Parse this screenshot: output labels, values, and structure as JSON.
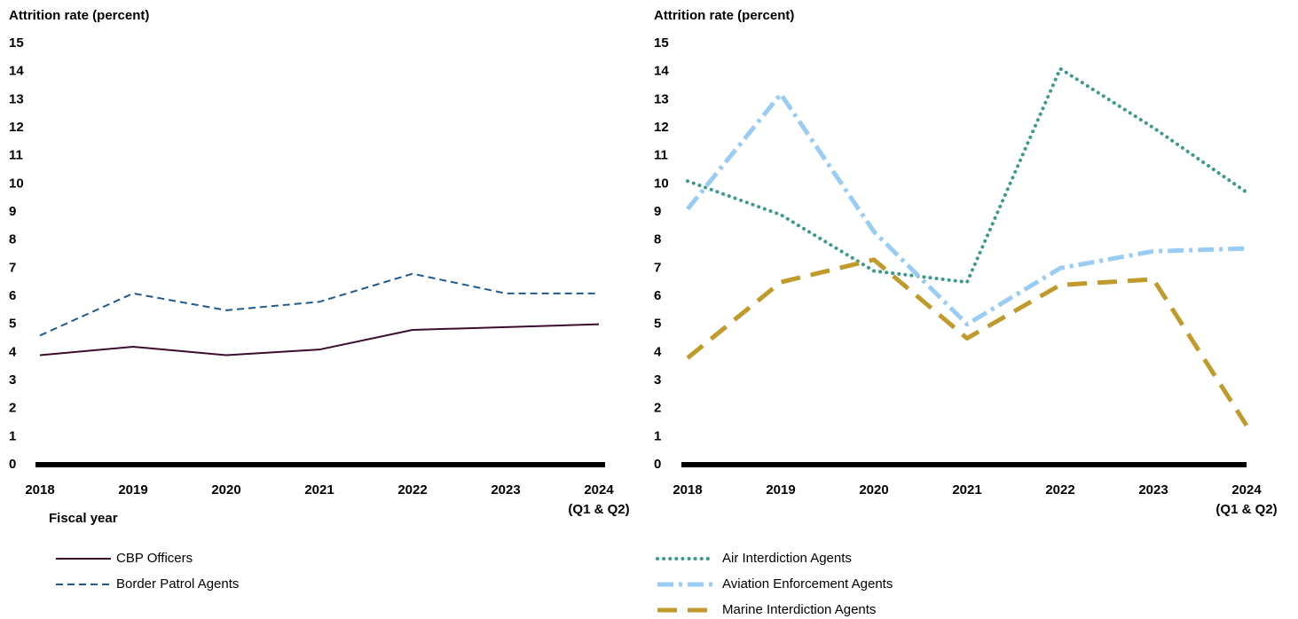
{
  "chart_data": [
    {
      "type": "line",
      "y_label": "Attrition rate (percent)",
      "x_label": "Fiscal year",
      "categories": [
        "2018",
        "2019",
        "2020",
        "2021",
        "2022",
        "2023",
        "2024\n(Q1 & Q2)"
      ],
      "ylim": [
        0,
        15
      ],
      "yticks": [
        0,
        1,
        2,
        3,
        4,
        5,
        6,
        7,
        8,
        9,
        10,
        11,
        12,
        13,
        14,
        15
      ],
      "series": [
        {
          "name": "CBP Officers",
          "color": "#3b0d2e",
          "style": "solid",
          "values": [
            3.9,
            4.2,
            3.9,
            4.1,
            4.8,
            4.9,
            5.0
          ]
        },
        {
          "name": "Border Patrol Agents",
          "color": "#1f5a8f",
          "style": "dashed",
          "values": [
            4.6,
            6.1,
            5.5,
            5.8,
            6.8,
            6.1,
            6.1
          ]
        }
      ]
    },
    {
      "type": "line",
      "y_label": "Attrition rate (percent)",
      "categories": [
        "2018",
        "2019",
        "2020",
        "2021",
        "2022",
        "2023",
        "2024\n(Q1 & Q2)"
      ],
      "ylim": [
        0,
        15
      ],
      "yticks": [
        0,
        1,
        2,
        3,
        4,
        5,
        6,
        7,
        8,
        9,
        10,
        11,
        12,
        13,
        14,
        15
      ],
      "series": [
        {
          "name": "Air Interdiction Agents",
          "color": "#3a9a8c",
          "style": "dotted",
          "values": [
            10.1,
            8.9,
            6.9,
            6.5,
            14.1,
            12.0,
            9.7
          ]
        },
        {
          "name": "Aviation Enforcement Agents",
          "color": "#99ccf5",
          "style": "dashdot",
          "values": [
            9.1,
            13.2,
            8.3,
            5.0,
            7.0,
            7.6,
            7.7
          ]
        },
        {
          "name": "Marine Interdiction Agents",
          "color": "#c09a2a",
          "style": "longdash",
          "values": [
            3.8,
            6.5,
            7.3,
            4.5,
            6.4,
            6.6,
            1.4
          ]
        }
      ]
    }
  ]
}
